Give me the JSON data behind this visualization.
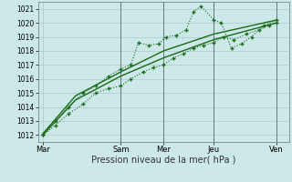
{
  "background_color": "#cce8e8",
  "grid_color": "#aacccc",
  "line_color": "#1a6b1a",
  "xlabel": "Pression niveau de la mer( hPa )",
  "ylim": [
    1011.5,
    1021.5
  ],
  "yticks": [
    1012,
    1013,
    1014,
    1015,
    1016,
    1017,
    1018,
    1019,
    1020,
    1021
  ],
  "xlim": [
    0,
    10
  ],
  "xtick_positions": [
    0.2,
    3.3,
    5.0,
    7.0,
    9.5
  ],
  "xtick_labels": [
    "Mar",
    "Sam",
    "Mer",
    "Jeu",
    "Ven"
  ],
  "vline_positions": [
    3.3,
    5.0,
    7.0,
    9.5
  ],
  "series": [
    {
      "x": [
        0.2,
        0.7,
        1.2,
        1.8,
        2.3,
        2.8,
        3.3,
        3.7,
        4.2,
        4.6,
        5.0,
        5.4,
        5.8,
        6.2,
        6.6,
        7.0,
        7.4,
        7.8,
        8.3,
        8.8,
        9.2,
        9.5
      ],
      "y": [
        1012.0,
        1012.7,
        1013.5,
        1014.2,
        1015.0,
        1015.3,
        1015.5,
        1016.0,
        1016.5,
        1016.8,
        1017.0,
        1017.5,
        1017.8,
        1018.2,
        1018.4,
        1018.6,
        1019.0,
        1018.8,
        1019.2,
        1019.5,
        1019.8,
        1020.0
      ],
      "marker": "+",
      "markersize": 3,
      "linewidth": 0.8,
      "linestyle": ":"
    },
    {
      "x": [
        0.2,
        0.7,
        1.2,
        1.8,
        2.3,
        2.8,
        3.3,
        3.7,
        4.0,
        4.4,
        4.8,
        5.1,
        5.5,
        5.9,
        6.2,
        6.5,
        7.0,
        7.3,
        7.7,
        8.1,
        8.5,
        9.0,
        9.5
      ],
      "y": [
        1012.0,
        1013.0,
        1014.0,
        1015.0,
        1015.5,
        1016.2,
        1016.7,
        1017.0,
        1018.6,
        1018.4,
        1018.5,
        1019.0,
        1019.1,
        1019.5,
        1020.8,
        1021.2,
        1020.2,
        1020.0,
        1018.2,
        1018.5,
        1019.0,
        1019.8,
        1020.2
      ],
      "marker": "+",
      "markersize": 3,
      "linewidth": 0.8,
      "linestyle": ":"
    },
    {
      "x": [
        0.2,
        1.5,
        3.3,
        5.0,
        7.0,
        9.5
      ],
      "y": [
        1012.0,
        1014.5,
        1016.2,
        1017.5,
        1018.8,
        1020.0
      ],
      "marker": null,
      "markersize": 0,
      "linewidth": 1.0,
      "linestyle": "-"
    },
    {
      "x": [
        0.2,
        1.5,
        3.3,
        5.0,
        7.0,
        9.5
      ],
      "y": [
        1012.1,
        1014.8,
        1016.5,
        1018.0,
        1019.2,
        1020.2
      ],
      "marker": null,
      "markersize": 0,
      "linewidth": 1.0,
      "linestyle": "-"
    }
  ]
}
